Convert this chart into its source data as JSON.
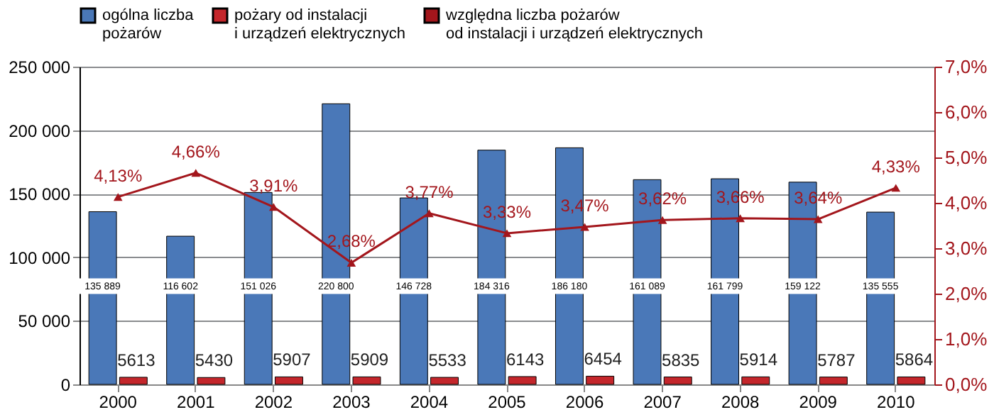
{
  "chart_data": {
    "type": "bar",
    "categories": [
      "2000",
      "2001",
      "2002",
      "2003",
      "2004",
      "2005",
      "2006",
      "2007",
      "2008",
      "2009",
      "2010"
    ],
    "series": [
      {
        "name": "ogólna liczba pożarów",
        "color": "#4a78b8",
        "values": [
          135889,
          116602,
          151026,
          220800,
          146728,
          184316,
          186180,
          161089,
          161799,
          159122,
          135555
        ],
        "value_labels": [
          "135 889",
          "116 602",
          "151 026",
          "220 800",
          "146 728",
          "184 316",
          "186 180",
          "161 089",
          "161 799",
          "159 122",
          "135 555"
        ]
      },
      {
        "name": "pożary od instalacji i urządzeń elektrycznych",
        "color": "#c4262b",
        "values": [
          5613,
          5430,
          5907,
          5909,
          5533,
          6143,
          6454,
          5835,
          5914,
          5787,
          5864
        ],
        "value_labels": [
          "5613",
          "5430",
          "5907",
          "5909",
          "5533",
          "6143",
          "6454",
          "5835",
          "5914",
          "5787",
          "5864"
        ]
      },
      {
        "name": "względna liczba pożarów od instalacji i urządzeń elektrycznych",
        "type": "line",
        "axis": "y2",
        "color": "#a3161c",
        "marker": "triangle",
        "line_style": "solid",
        "values": [
          4.13,
          4.66,
          3.91,
          2.68,
          3.77,
          3.33,
          3.47,
          3.62,
          3.66,
          3.64,
          4.33
        ],
        "value_labels": [
          "4,13%",
          "4,66%",
          "3,91%",
          "2,68%",
          "3,77%",
          "3,33%",
          "3,47%",
          "3,62%",
          "3,66%",
          "3,64%",
          "4,33%"
        ]
      }
    ],
    "ylim": [
      0,
      250000
    ],
    "yticks": [
      {
        "value": 0,
        "label": "0"
      },
      {
        "value": 50000,
        "label": "50 000"
      },
      {
        "value": 100000,
        "label": "100 000"
      },
      {
        "value": 150000,
        "label": "150 000"
      },
      {
        "value": 200000,
        "label": "200 000"
      },
      {
        "value": 250000,
        "label": "250 000"
      }
    ],
    "y2lim": [
      0,
      7
    ],
    "y2ticks": [
      {
        "value": 0,
        "label": "0,0%"
      },
      {
        "value": 1,
        "label": "1,0%"
      },
      {
        "value": 2,
        "label": "2,0%"
      },
      {
        "value": 3,
        "label": "3,0%"
      },
      {
        "value": 4,
        "label": "4,0%"
      },
      {
        "value": 5,
        "label": "5,0%"
      },
      {
        "value": 6,
        "label": "6,0%"
      },
      {
        "value": 7,
        "label": "7,0%"
      }
    ],
    "grid": "y",
    "legend": "top"
  }
}
